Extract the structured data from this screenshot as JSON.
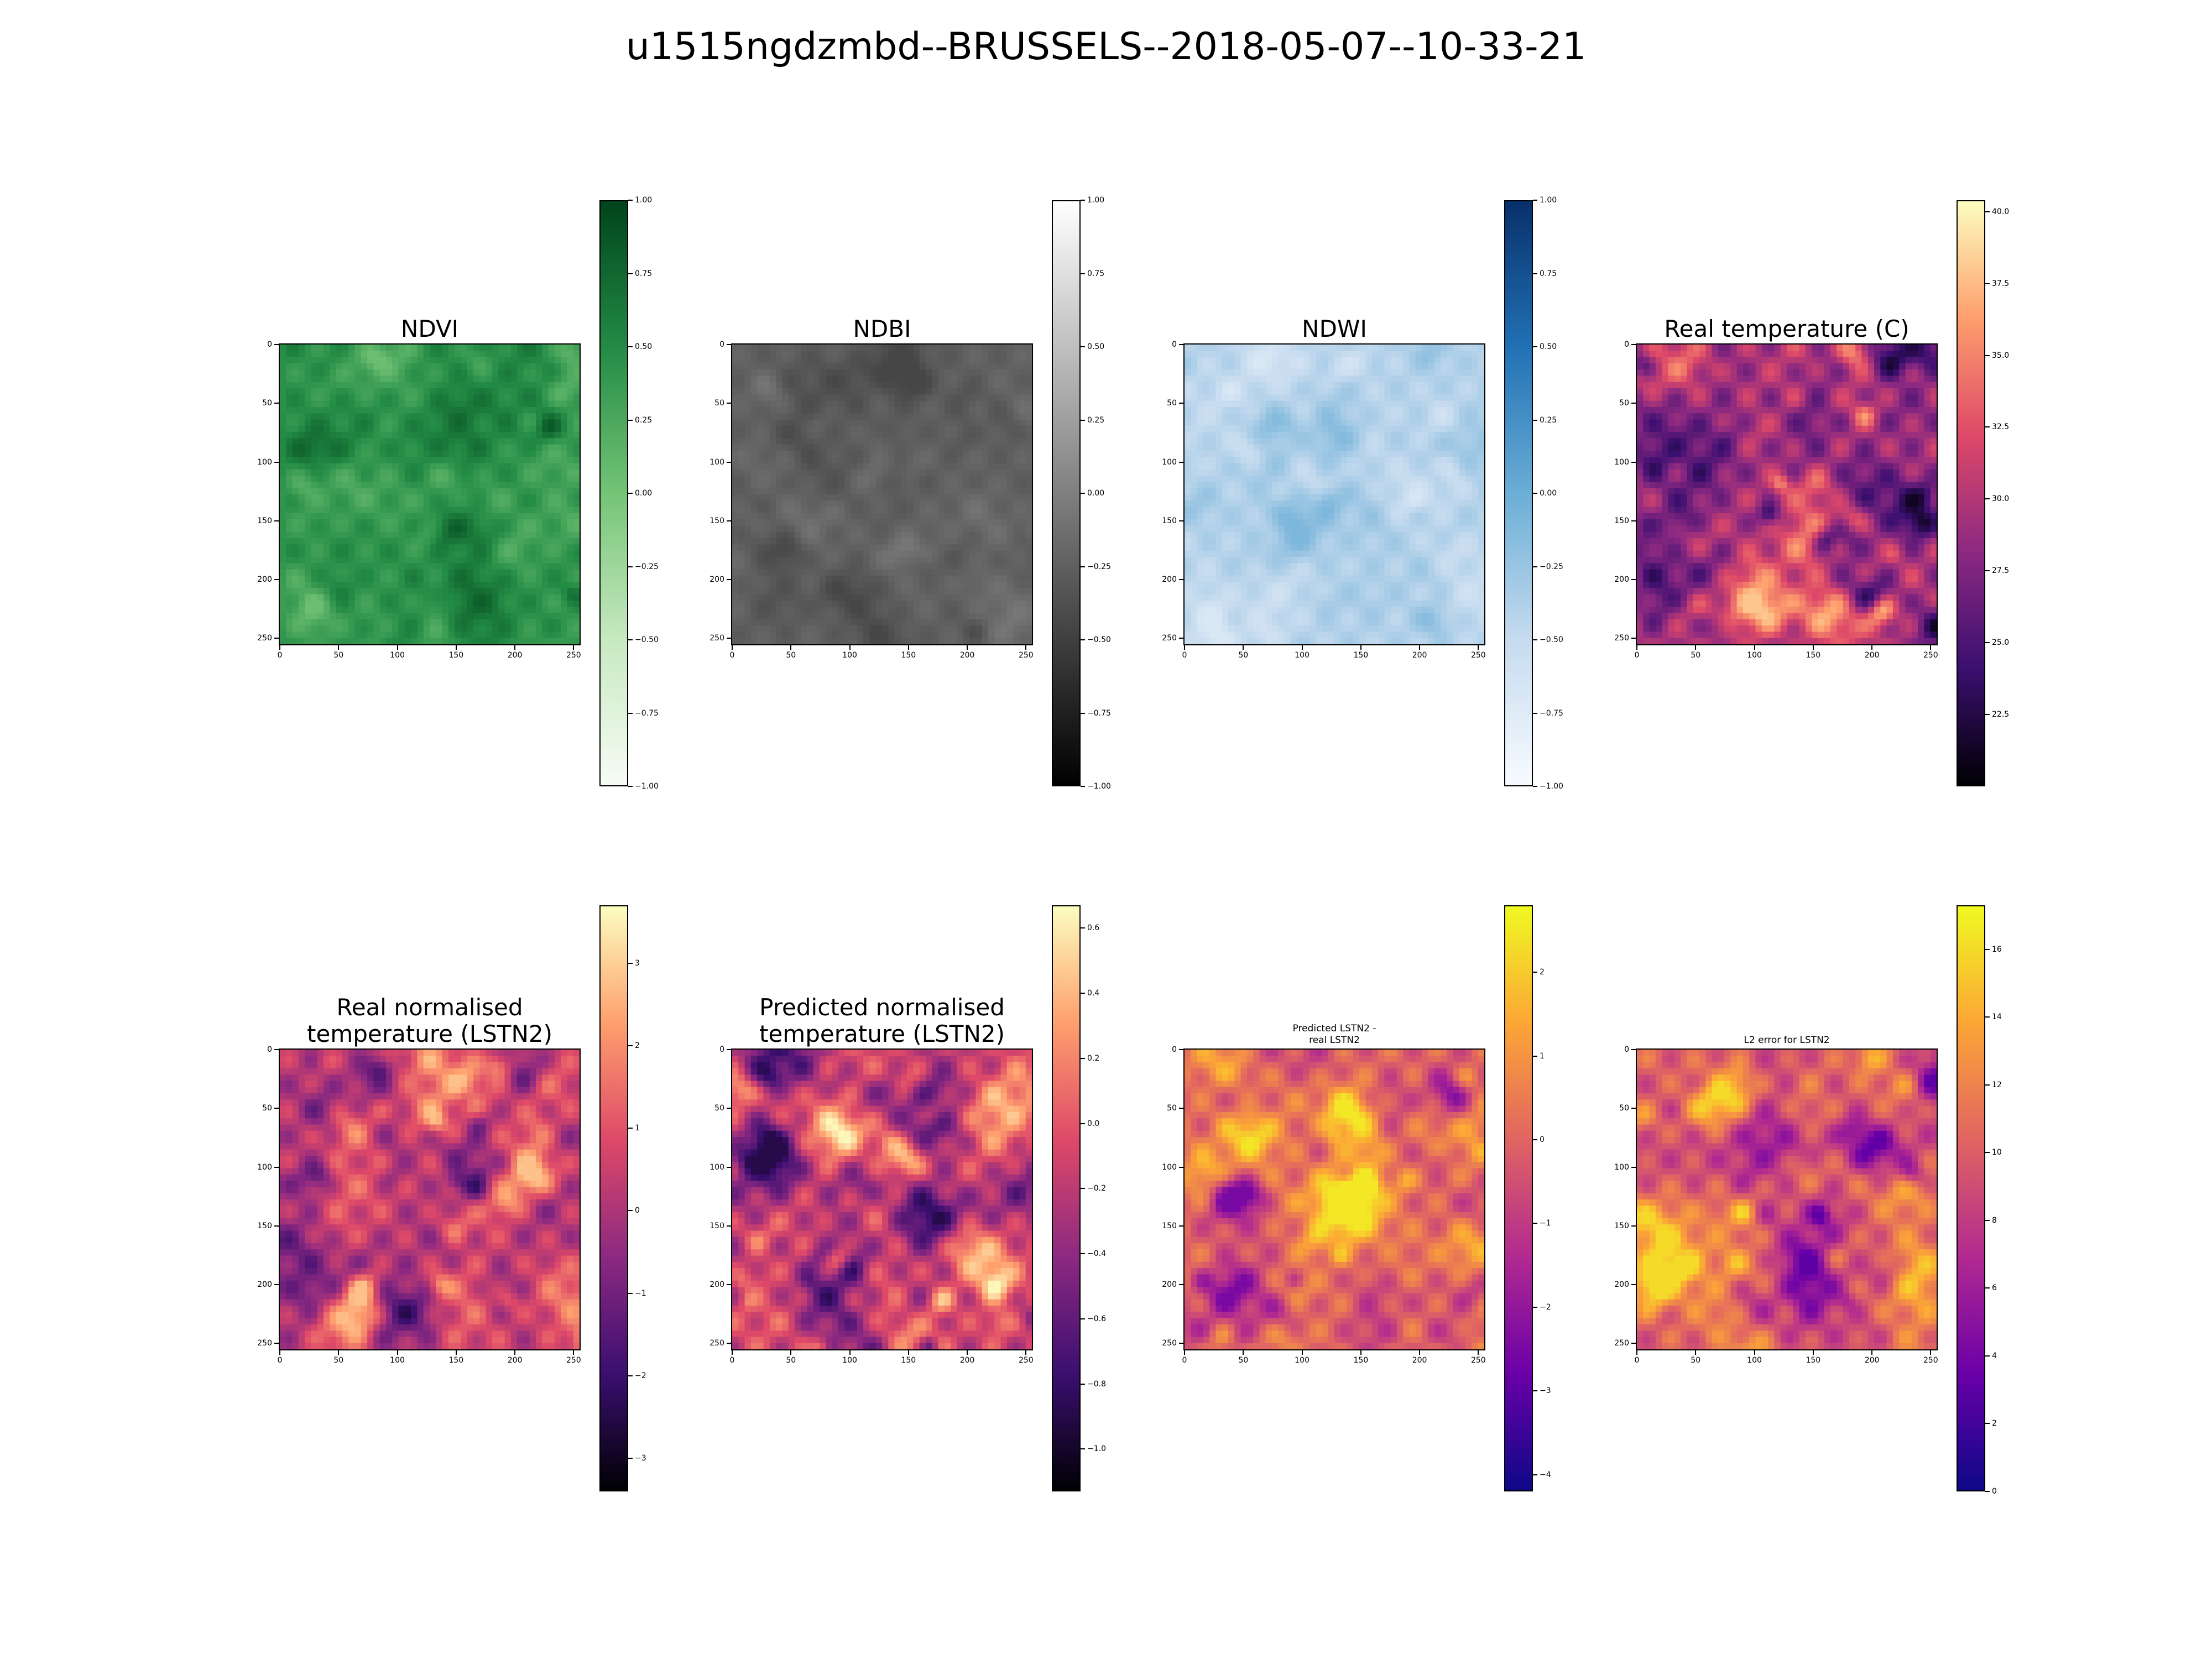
{
  "figure": {
    "title": "u1515ngdzmbd--BRUSSELS--2018-05-07--10-33-21"
  },
  "chart_data": [
    {
      "type": "heatmap",
      "id": "ndvi",
      "title": "NDVI",
      "title_size": "big",
      "colormap": [
        "#f7fcf5",
        "#c7e9c0",
        "#74c476",
        "#238b45",
        "#00441b"
      ],
      "grid_size": [
        256,
        256
      ],
      "xticks": [
        "0",
        "50",
        "100",
        "150",
        "200",
        "250"
      ],
      "yticks": [
        "0",
        "50",
        "100",
        "150",
        "200",
        "250"
      ],
      "colorbar": {
        "range": [
          -1.0,
          1.0
        ],
        "ticks": [
          "1.00",
          "0.75",
          "0.50",
          "0.25",
          "0.00",
          "−0.25",
          "−0.50",
          "−0.75",
          "−1.00"
        ],
        "tick_values": [
          1.0,
          0.75,
          0.5,
          0.25,
          0.0,
          -0.25,
          -0.5,
          -0.75,
          -1.0
        ]
      },
      "approx_value_range": [
        0.05,
        0.85
      ]
    },
    {
      "type": "heatmap",
      "id": "ndbi",
      "title": "NDBI",
      "title_size": "big",
      "colormap": [
        "#000000",
        "#555555",
        "#aaaaaa",
        "#ffffff"
      ],
      "grid_size": [
        256,
        256
      ],
      "xticks": [
        "0",
        "50",
        "100",
        "150",
        "200",
        "250"
      ],
      "yticks": [
        "0",
        "50",
        "100",
        "150",
        "200",
        "250"
      ],
      "colorbar": {
        "range": [
          -1.0,
          1.0
        ],
        "ticks": [
          "1.00",
          "0.75",
          "0.50",
          "0.25",
          "0.00",
          "−0.25",
          "−0.50",
          "−0.75",
          "−1.00"
        ],
        "tick_values": [
          1.0,
          0.75,
          0.5,
          0.25,
          0.0,
          -0.25,
          -0.5,
          -0.75,
          -1.0
        ]
      },
      "approx_value_range": [
        -0.45,
        -0.05
      ]
    },
    {
      "type": "heatmap",
      "id": "ndwi",
      "title": "NDWI",
      "title_size": "big",
      "colormap": [
        "#f7fbff",
        "#c6dbef",
        "#6baed6",
        "#2171b5",
        "#08306b"
      ],
      "grid_size": [
        256,
        256
      ],
      "xticks": [
        "0",
        "50",
        "100",
        "150",
        "200",
        "250"
      ],
      "yticks": [
        "0",
        "50",
        "100",
        "150",
        "200",
        "250"
      ],
      "colorbar": {
        "range": [
          -1.0,
          1.0
        ],
        "ticks": [
          "1.00",
          "0.75",
          "0.50",
          "0.25",
          "0.00",
          "−0.25",
          "−0.50",
          "−0.75",
          "−1.00"
        ],
        "tick_values": [
          1.0,
          0.75,
          0.5,
          0.25,
          0.0,
          -0.25,
          -0.5,
          -0.75,
          -1.0
        ]
      },
      "approx_value_range": [
        -0.7,
        -0.1
      ]
    },
    {
      "type": "heatmap",
      "id": "real-temp",
      "title": "Real temperature (C)",
      "title_size": "big",
      "colormap": [
        "#000004",
        "#3b0f70",
        "#8c2981",
        "#de4968",
        "#fe9f6d",
        "#fcfdbf"
      ],
      "grid_size": [
        256,
        256
      ],
      "xticks": [
        "0",
        "50",
        "100",
        "150",
        "200",
        "250"
      ],
      "yticks": [
        "0",
        "50",
        "100",
        "150",
        "200",
        "250"
      ],
      "colorbar": {
        "range": [
          20.0,
          40.4
        ],
        "ticks": [
          "40.0",
          "37.5",
          "35.0",
          "32.5",
          "30.0",
          "27.5",
          "25.0",
          "22.5"
        ],
        "tick_values": [
          40.0,
          37.5,
          35.0,
          32.5,
          30.0,
          27.5,
          25.0,
          22.5
        ]
      },
      "approx_value_range": [
        21,
        38
      ]
    },
    {
      "type": "heatmap",
      "id": "real-lstn2",
      "title": "Real normalised\ntemperature (LSTN2)",
      "title_size": "big",
      "colormap": [
        "#000004",
        "#3b0f70",
        "#8c2981",
        "#de4968",
        "#fe9f6d",
        "#fcfdbf"
      ],
      "grid_size": [
        256,
        256
      ],
      "xticks": [
        "0",
        "50",
        "100",
        "150",
        "200",
        "250"
      ],
      "yticks": [
        "0",
        "50",
        "100",
        "150",
        "200",
        "250"
      ],
      "colorbar": {
        "range": [
          -3.4,
          3.7
        ],
        "ticks": [
          "3",
          "2",
          "1",
          "0",
          "−1",
          "−2",
          "−3"
        ],
        "tick_values": [
          3,
          2,
          1,
          0,
          -1,
          -2,
          -3
        ]
      },
      "approx_value_range": [
        -2.5,
        2.8
      ]
    },
    {
      "type": "heatmap",
      "id": "pred-lstn2",
      "title": "Predicted normalised\ntemperature (LSTN2)",
      "title_size": "big",
      "colormap": [
        "#000004",
        "#3b0f70",
        "#8c2981",
        "#de4968",
        "#fe9f6d",
        "#fcfdbf"
      ],
      "grid_size": [
        256,
        256
      ],
      "xticks": [
        "0",
        "50",
        "100",
        "150",
        "200",
        "250"
      ],
      "yticks": [
        "0",
        "50",
        "100",
        "150",
        "200",
        "250"
      ],
      "colorbar": {
        "range": [
          -1.13,
          0.67
        ],
        "ticks": [
          "0.6",
          "0.4",
          "0.2",
          "0.0",
          "−0.2",
          "−0.4",
          "−0.6",
          "−0.8",
          "−1.0"
        ],
        "tick_values": [
          0.6,
          0.4,
          0.2,
          0.0,
          -0.2,
          -0.4,
          -0.6,
          -0.8,
          -1.0
        ]
      },
      "approx_value_range": [
        -0.9,
        0.65
      ]
    },
    {
      "type": "heatmap",
      "id": "diff-lstn2",
      "title": "Predicted LSTN2 -\nreal LSTN2",
      "title_size": "small",
      "colormap": [
        "#0d0887",
        "#6a00a8",
        "#b12a90",
        "#e16462",
        "#fca636",
        "#f0f921"
      ],
      "grid_size": [
        256,
        256
      ],
      "xticks": [
        "0",
        "50",
        "100",
        "150",
        "200",
        "250"
      ],
      "yticks": [
        "0",
        "50",
        "100",
        "150",
        "200",
        "250"
      ],
      "colorbar": {
        "range": [
          -4.2,
          2.8
        ],
        "ticks": [
          "2",
          "1",
          "0",
          "−1",
          "−2",
          "−3",
          "−4"
        ],
        "tick_values": [
          2,
          1,
          0,
          -1,
          -2,
          -3,
          -4
        ]
      },
      "approx_value_range": [
        -2.5,
        2.5
      ]
    },
    {
      "type": "heatmap",
      "id": "l2-error",
      "title": "L2 error for LSTN2",
      "title_size": "small",
      "colormap": [
        "#0d0887",
        "#6a00a8",
        "#b12a90",
        "#e16462",
        "#fca636",
        "#f0f921"
      ],
      "grid_size": [
        256,
        256
      ],
      "xticks": [
        "0",
        "50",
        "100",
        "150",
        "200",
        "250"
      ],
      "yticks": [
        "0",
        "50",
        "100",
        "150",
        "200",
        "250"
      ],
      "colorbar": {
        "range": [
          0,
          17.3
        ],
        "ticks": [
          "16",
          "14",
          "12",
          "10",
          "8",
          "6",
          "4",
          "2",
          "0"
        ],
        "tick_values": [
          16,
          14,
          12,
          10,
          8,
          6,
          4,
          2,
          0
        ]
      },
      "approx_value_range": [
        3,
        16
      ]
    }
  ]
}
